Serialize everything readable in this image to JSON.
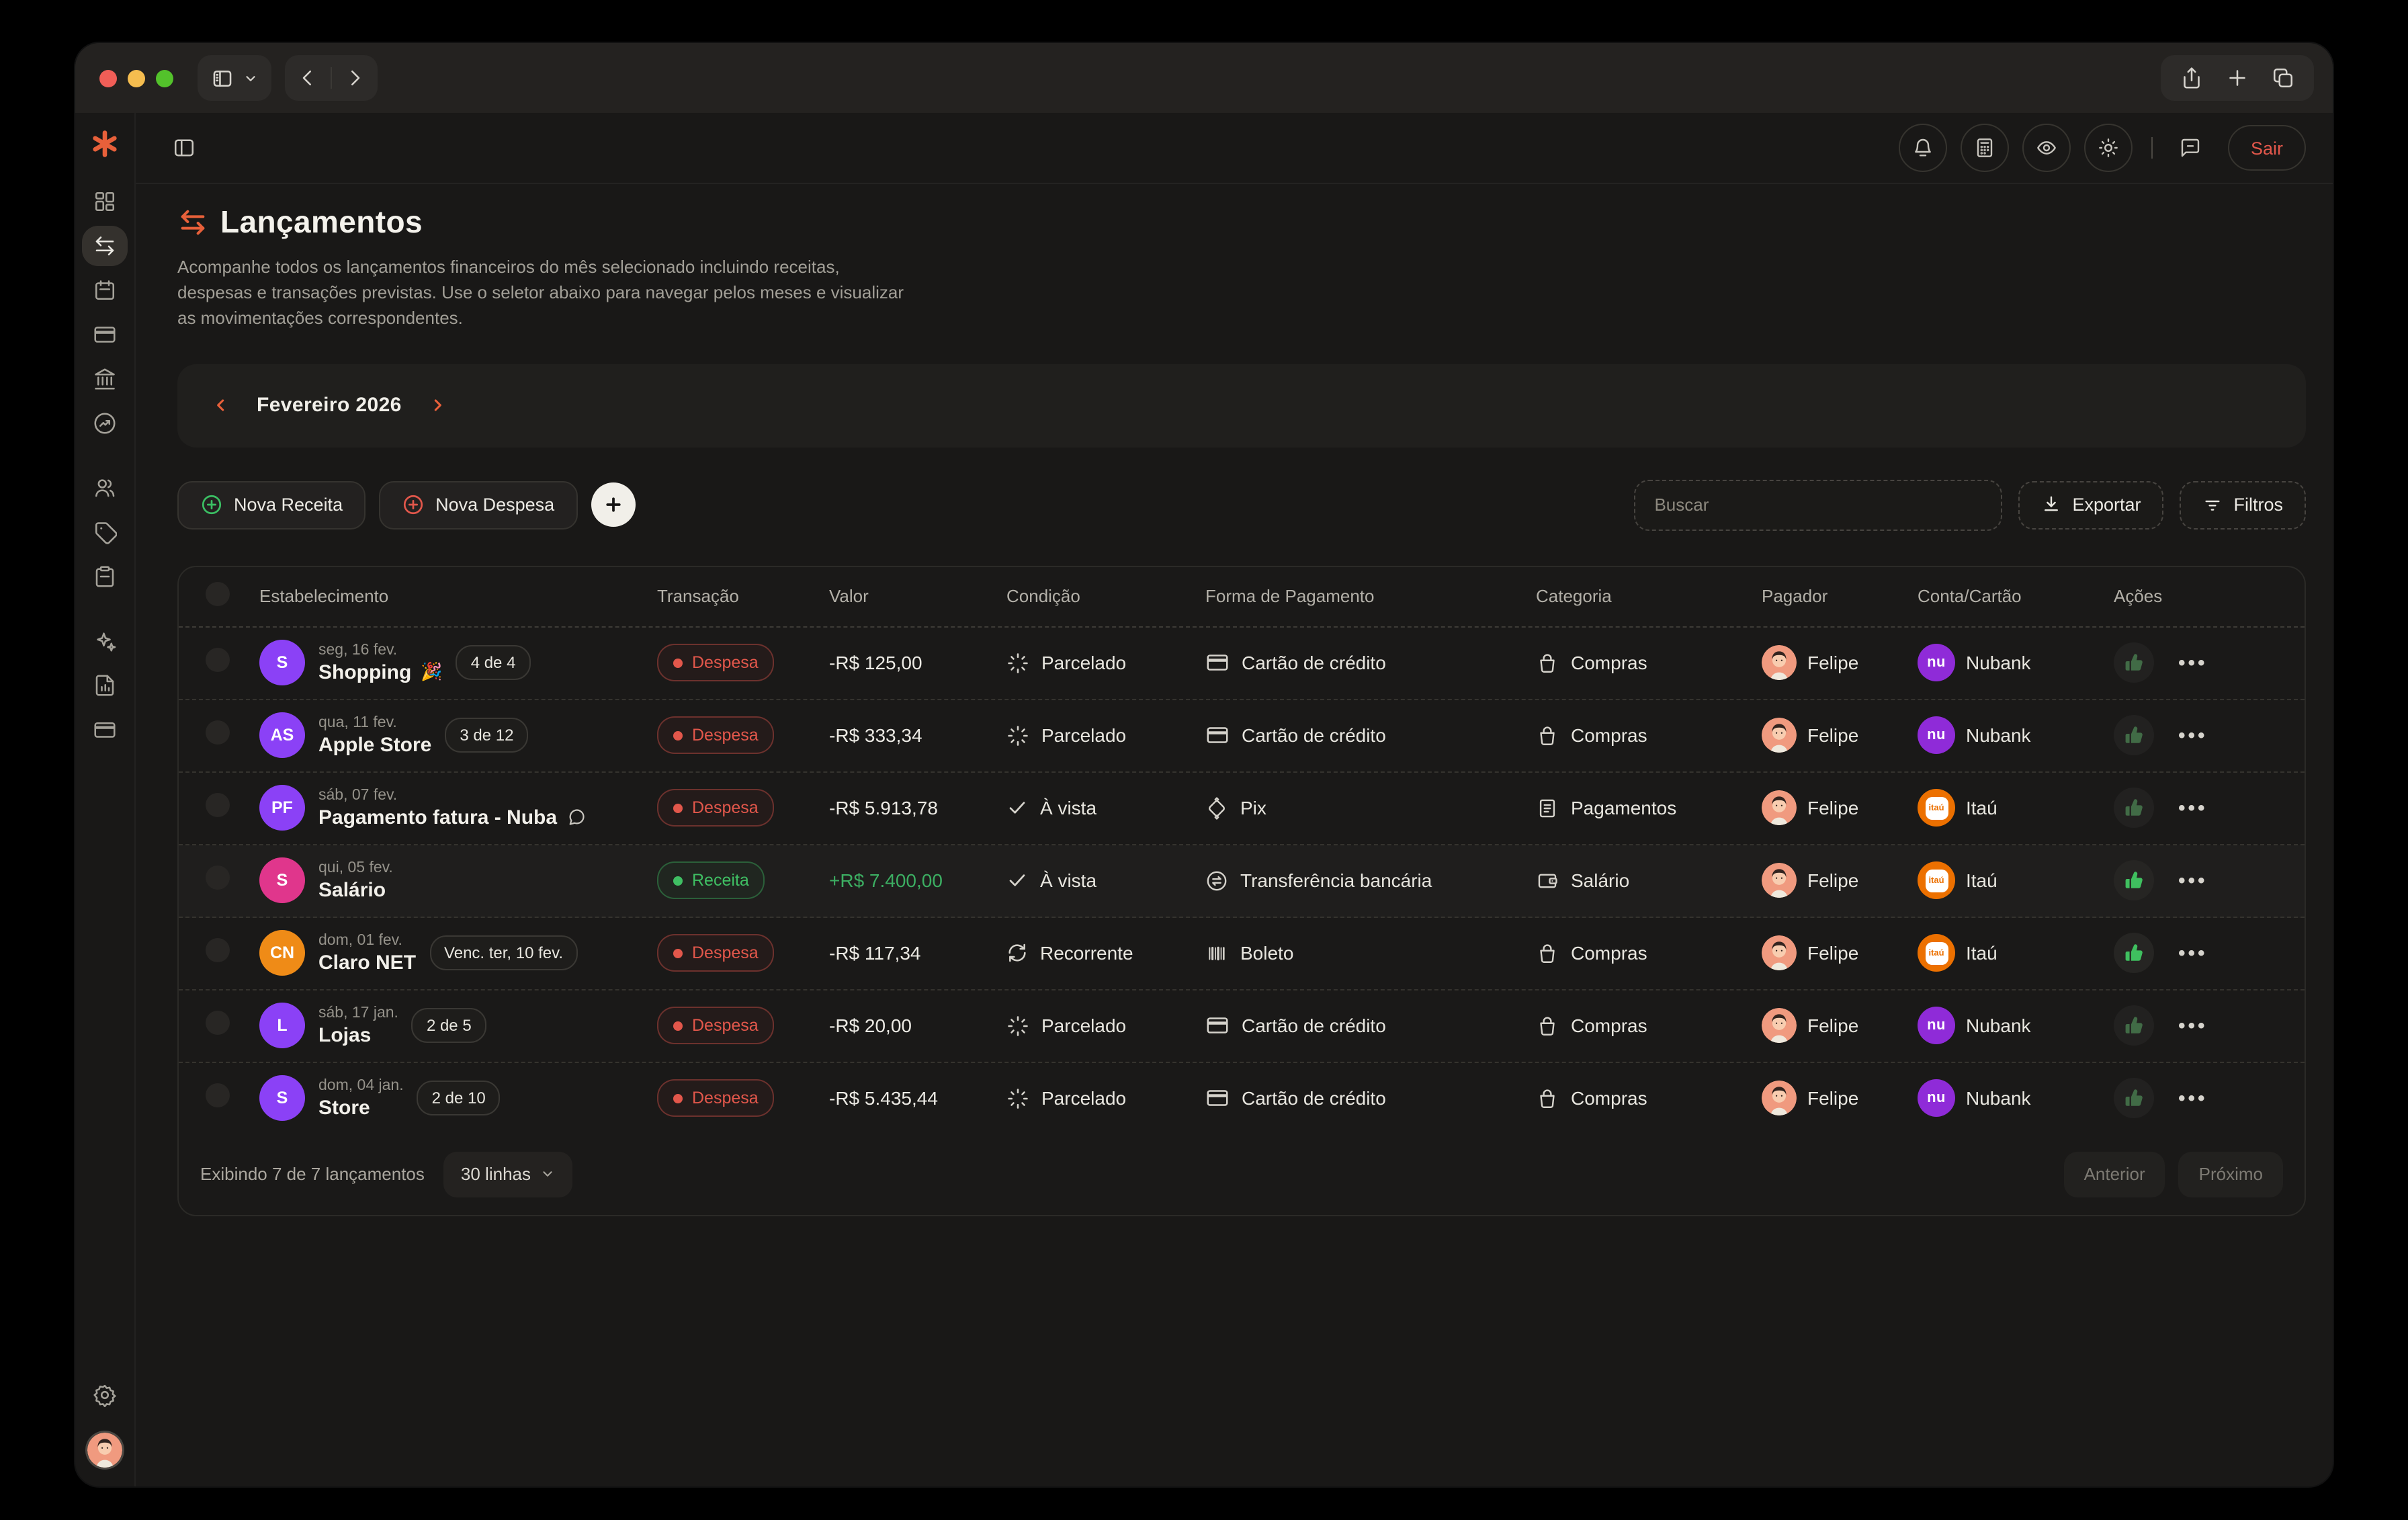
{
  "colors": {
    "accent": "#e8603a",
    "expense_red": "#e2574b",
    "income_green": "#3fbf63",
    "nubank_purple": "#8f2bd8",
    "itau_orange": "#ec7000"
  },
  "browser": {
    "left_icons": [
      "sidebar-toggle-icon",
      "chevron-down-icon",
      "chevron-left-icon",
      "chevron-right-icon"
    ],
    "right_icons": [
      "share-icon",
      "plus-icon",
      "tabs-icon"
    ]
  },
  "topbar": {
    "icons": [
      "bell-icon",
      "calculator-icon",
      "eye-icon",
      "sun-icon",
      "chat-icon"
    ],
    "logout_label": "Sair"
  },
  "sidebar": {
    "logo": "asterisk-logo",
    "items": [
      {
        "icon": "dashboard-icon",
        "active": false,
        "gap": false
      },
      {
        "icon": "transactions-icon",
        "active": true,
        "gap": false
      },
      {
        "icon": "calendar-icon",
        "active": false,
        "gap": false
      },
      {
        "icon": "credit-card-icon",
        "active": false,
        "gap": false
      },
      {
        "icon": "bank-icon",
        "active": false,
        "gap": false
      },
      {
        "icon": "investments-icon",
        "active": false,
        "gap": false
      },
      {
        "icon": "users-icon",
        "active": false,
        "gap": true
      },
      {
        "icon": "tag-icon",
        "active": false,
        "gap": false
      },
      {
        "icon": "clipboard-icon",
        "active": false,
        "gap": false
      },
      {
        "icon": "sparkles-icon",
        "active": false,
        "gap": true
      },
      {
        "icon": "report-icon",
        "active": false,
        "gap": false
      },
      {
        "icon": "wallet-card-icon",
        "active": false,
        "gap": false
      }
    ],
    "bottom": [
      "gear-icon",
      "profile-avatar"
    ]
  },
  "page": {
    "title": "Lançamentos",
    "description": "Acompanhe todos os lançamentos financeiros do mês selecionado incluindo receitas, despesas e transações previstas. Use o seletor abaixo para navegar pelos meses e visualizar as movimentações correspondentes.",
    "month_selector": {
      "label": "Fevereiro 2026"
    },
    "new_income_label": "Nova Receita",
    "new_expense_label": "Nova Despesa",
    "search_placeholder": "Buscar",
    "export_label": "Exportar",
    "filters_label": "Filtros"
  },
  "table": {
    "columns": [
      "Estabelecimento",
      "Transação",
      "Valor",
      "Condição",
      "Forma de Pagamento",
      "Categoria",
      "Pagador",
      "Conta/Cartão",
      "Ações"
    ],
    "rows": [
      {
        "avatar": {
          "initials": "S",
          "color": "#8b41f6"
        },
        "date": "seg, 16 fev.",
        "name": "Shopping",
        "emoji": "🎉",
        "badge": "4 de 4",
        "comment": false,
        "type": {
          "label": "Despesa",
          "kind": "expense"
        },
        "value": {
          "text": "-R$ 125,00",
          "kind": "negative"
        },
        "condition": {
          "label": "Parcelado",
          "icon": "loader-icon"
        },
        "payment": {
          "label": "Cartão de crédito",
          "icon": "credit-card-icon"
        },
        "category": {
          "label": "Compras",
          "icon": "shopping-bag-icon"
        },
        "payer": "Felipe",
        "account": {
          "label": "Nubank",
          "brand": "nubank",
          "brand_text": "nu"
        },
        "confirmed": false,
        "highlight": false
      },
      {
        "avatar": {
          "initials": "AS",
          "color": "#8b41f6"
        },
        "date": "qua, 11 fev.",
        "name": "Apple Store",
        "emoji": "",
        "badge": "3 de 12",
        "comment": false,
        "type": {
          "label": "Despesa",
          "kind": "expense"
        },
        "value": {
          "text": "-R$ 333,34",
          "kind": "negative"
        },
        "condition": {
          "label": "Parcelado",
          "icon": "loader-icon"
        },
        "payment": {
          "label": "Cartão de crédito",
          "icon": "credit-card-icon"
        },
        "category": {
          "label": "Compras",
          "icon": "shopping-bag-icon"
        },
        "payer": "Felipe",
        "account": {
          "label": "Nubank",
          "brand": "nubank",
          "brand_text": "nu"
        },
        "confirmed": false,
        "highlight": false
      },
      {
        "avatar": {
          "initials": "PF",
          "color": "#8b41f6"
        },
        "date": "sáb, 07 fev.",
        "name": "Pagamento fatura - Nuba",
        "emoji": "",
        "badge": "",
        "comment": true,
        "type": {
          "label": "Despesa",
          "kind": "expense"
        },
        "value": {
          "text": "-R$ 5.913,78",
          "kind": "negative"
        },
        "condition": {
          "label": "À vista",
          "icon": "check-icon"
        },
        "payment": {
          "label": "Pix",
          "icon": "pix-icon"
        },
        "category": {
          "label": "Pagamentos",
          "icon": "receipt-icon"
        },
        "payer": "Felipe",
        "account": {
          "label": "Itaú",
          "brand": "itau",
          "brand_text": "itaú"
        },
        "confirmed": false,
        "highlight": false
      },
      {
        "avatar": {
          "initials": "S",
          "color": "#e0368c"
        },
        "date": "qui, 05 fev.",
        "name": "Salário",
        "emoji": "",
        "badge": "",
        "comment": false,
        "type": {
          "label": "Receita",
          "kind": "income"
        },
        "value": {
          "text": "+R$ 7.400,00",
          "kind": "positive"
        },
        "condition": {
          "label": "À vista",
          "icon": "check-icon"
        },
        "payment": {
          "label": "Transferência bancária",
          "icon": "transfer-icon"
        },
        "category": {
          "label": "Salário",
          "icon": "wallet-icon"
        },
        "payer": "Felipe",
        "account": {
          "label": "Itaú",
          "brand": "itau",
          "brand_text": "itaú"
        },
        "confirmed": true,
        "highlight": true
      },
      {
        "avatar": {
          "initials": "CN",
          "color": "#ef8b17"
        },
        "date": "dom, 01 fev.",
        "name": "Claro NET",
        "emoji": "",
        "badge": "Venc. ter, 10 fev.",
        "comment": false,
        "type": {
          "label": "Despesa",
          "kind": "expense"
        },
        "value": {
          "text": "-R$ 117,34",
          "kind": "negative"
        },
        "condition": {
          "label": "Recorrente",
          "icon": "refresh-icon"
        },
        "payment": {
          "label": "Boleto",
          "icon": "barcode-icon"
        },
        "category": {
          "label": "Compras",
          "icon": "shopping-bag-icon"
        },
        "payer": "Felipe",
        "account": {
          "label": "Itaú",
          "brand": "itau",
          "brand_text": "itaú"
        },
        "confirmed": true,
        "highlight": false
      },
      {
        "avatar": {
          "initials": "L",
          "color": "#8b41f6"
        },
        "date": "sáb, 17 jan.",
        "name": "Lojas",
        "emoji": "",
        "badge": "2 de 5",
        "comment": false,
        "type": {
          "label": "Despesa",
          "kind": "expense"
        },
        "value": {
          "text": "-R$ 20,00",
          "kind": "negative"
        },
        "condition": {
          "label": "Parcelado",
          "icon": "loader-icon"
        },
        "payment": {
          "label": "Cartão de crédito",
          "icon": "credit-card-icon"
        },
        "category": {
          "label": "Compras",
          "icon": "shopping-bag-icon"
        },
        "payer": "Felipe",
        "account": {
          "label": "Nubank",
          "brand": "nubank",
          "brand_text": "nu"
        },
        "confirmed": false,
        "highlight": false
      },
      {
        "avatar": {
          "initials": "S",
          "color": "#8b41f6"
        },
        "date": "dom, 04 jan.",
        "name": "Store",
        "emoji": "",
        "badge": "2 de 10",
        "comment": false,
        "type": {
          "label": "Despesa",
          "kind": "expense"
        },
        "value": {
          "text": "-R$ 5.435,44",
          "kind": "negative"
        },
        "condition": {
          "label": "Parcelado",
          "icon": "loader-icon"
        },
        "payment": {
          "label": "Cartão de crédito",
          "icon": "credit-card-icon"
        },
        "category": {
          "label": "Compras",
          "icon": "shopping-bag-icon"
        },
        "payer": "Felipe",
        "account": {
          "label": "Nubank",
          "brand": "nubank",
          "brand_text": "nu"
        },
        "confirmed": false,
        "highlight": false
      }
    ],
    "footer": {
      "summary": "Exibindo 7 de 7 lançamentos",
      "rows_per_page": "30 linhas",
      "prev_label": "Anterior",
      "next_label": "Próximo"
    }
  }
}
